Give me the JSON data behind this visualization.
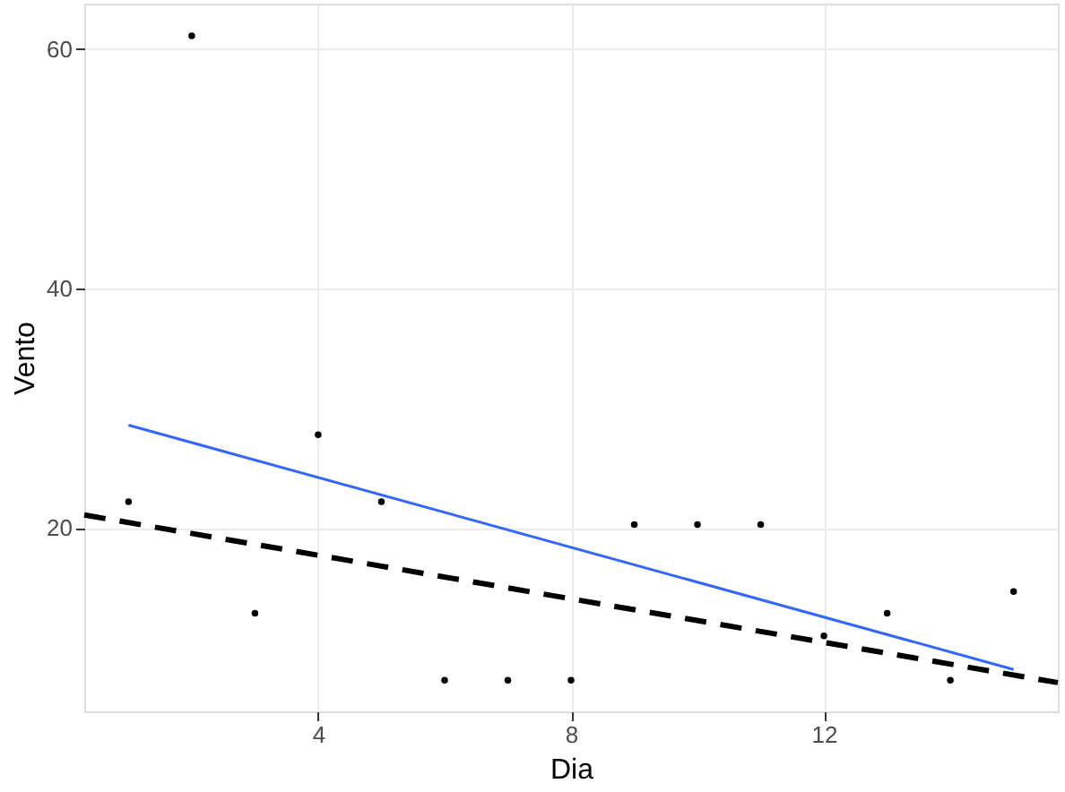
{
  "chart_data": {
    "type": "scatter",
    "xlabel": "Dia",
    "ylabel": "Vento",
    "xlim": [
      0.3,
      15.7
    ],
    "ylim": [
      4.7,
      63.8
    ],
    "xticks": [
      4,
      8,
      12
    ],
    "yticks": [
      20,
      40,
      60
    ],
    "grid": true,
    "series": [
      {
        "color": "#000000",
        "marker": "circle",
        "x": [
          1,
          2,
          3,
          4,
          5,
          6,
          7,
          8,
          9,
          10,
          11,
          12,
          13,
          14,
          15
        ],
        "values": [
          22.2,
          61.1,
          12.9,
          27.8,
          22.2,
          7.3,
          7.3,
          7.3,
          20.3,
          20.3,
          20.3,
          11.0,
          12.9,
          7.3,
          14.7
        ]
      },
      {
        "type": "line",
        "color": "#3366ff",
        "line_style": "solid",
        "x": [
          1,
          15
        ],
        "values": [
          28.6,
          8.2
        ]
      },
      {
        "type": "line",
        "color": "#000000",
        "line_style": "dashed",
        "x": [
          0.3,
          15.7
        ],
        "values": [
          21.1,
          7.1
        ]
      }
    ]
  }
}
